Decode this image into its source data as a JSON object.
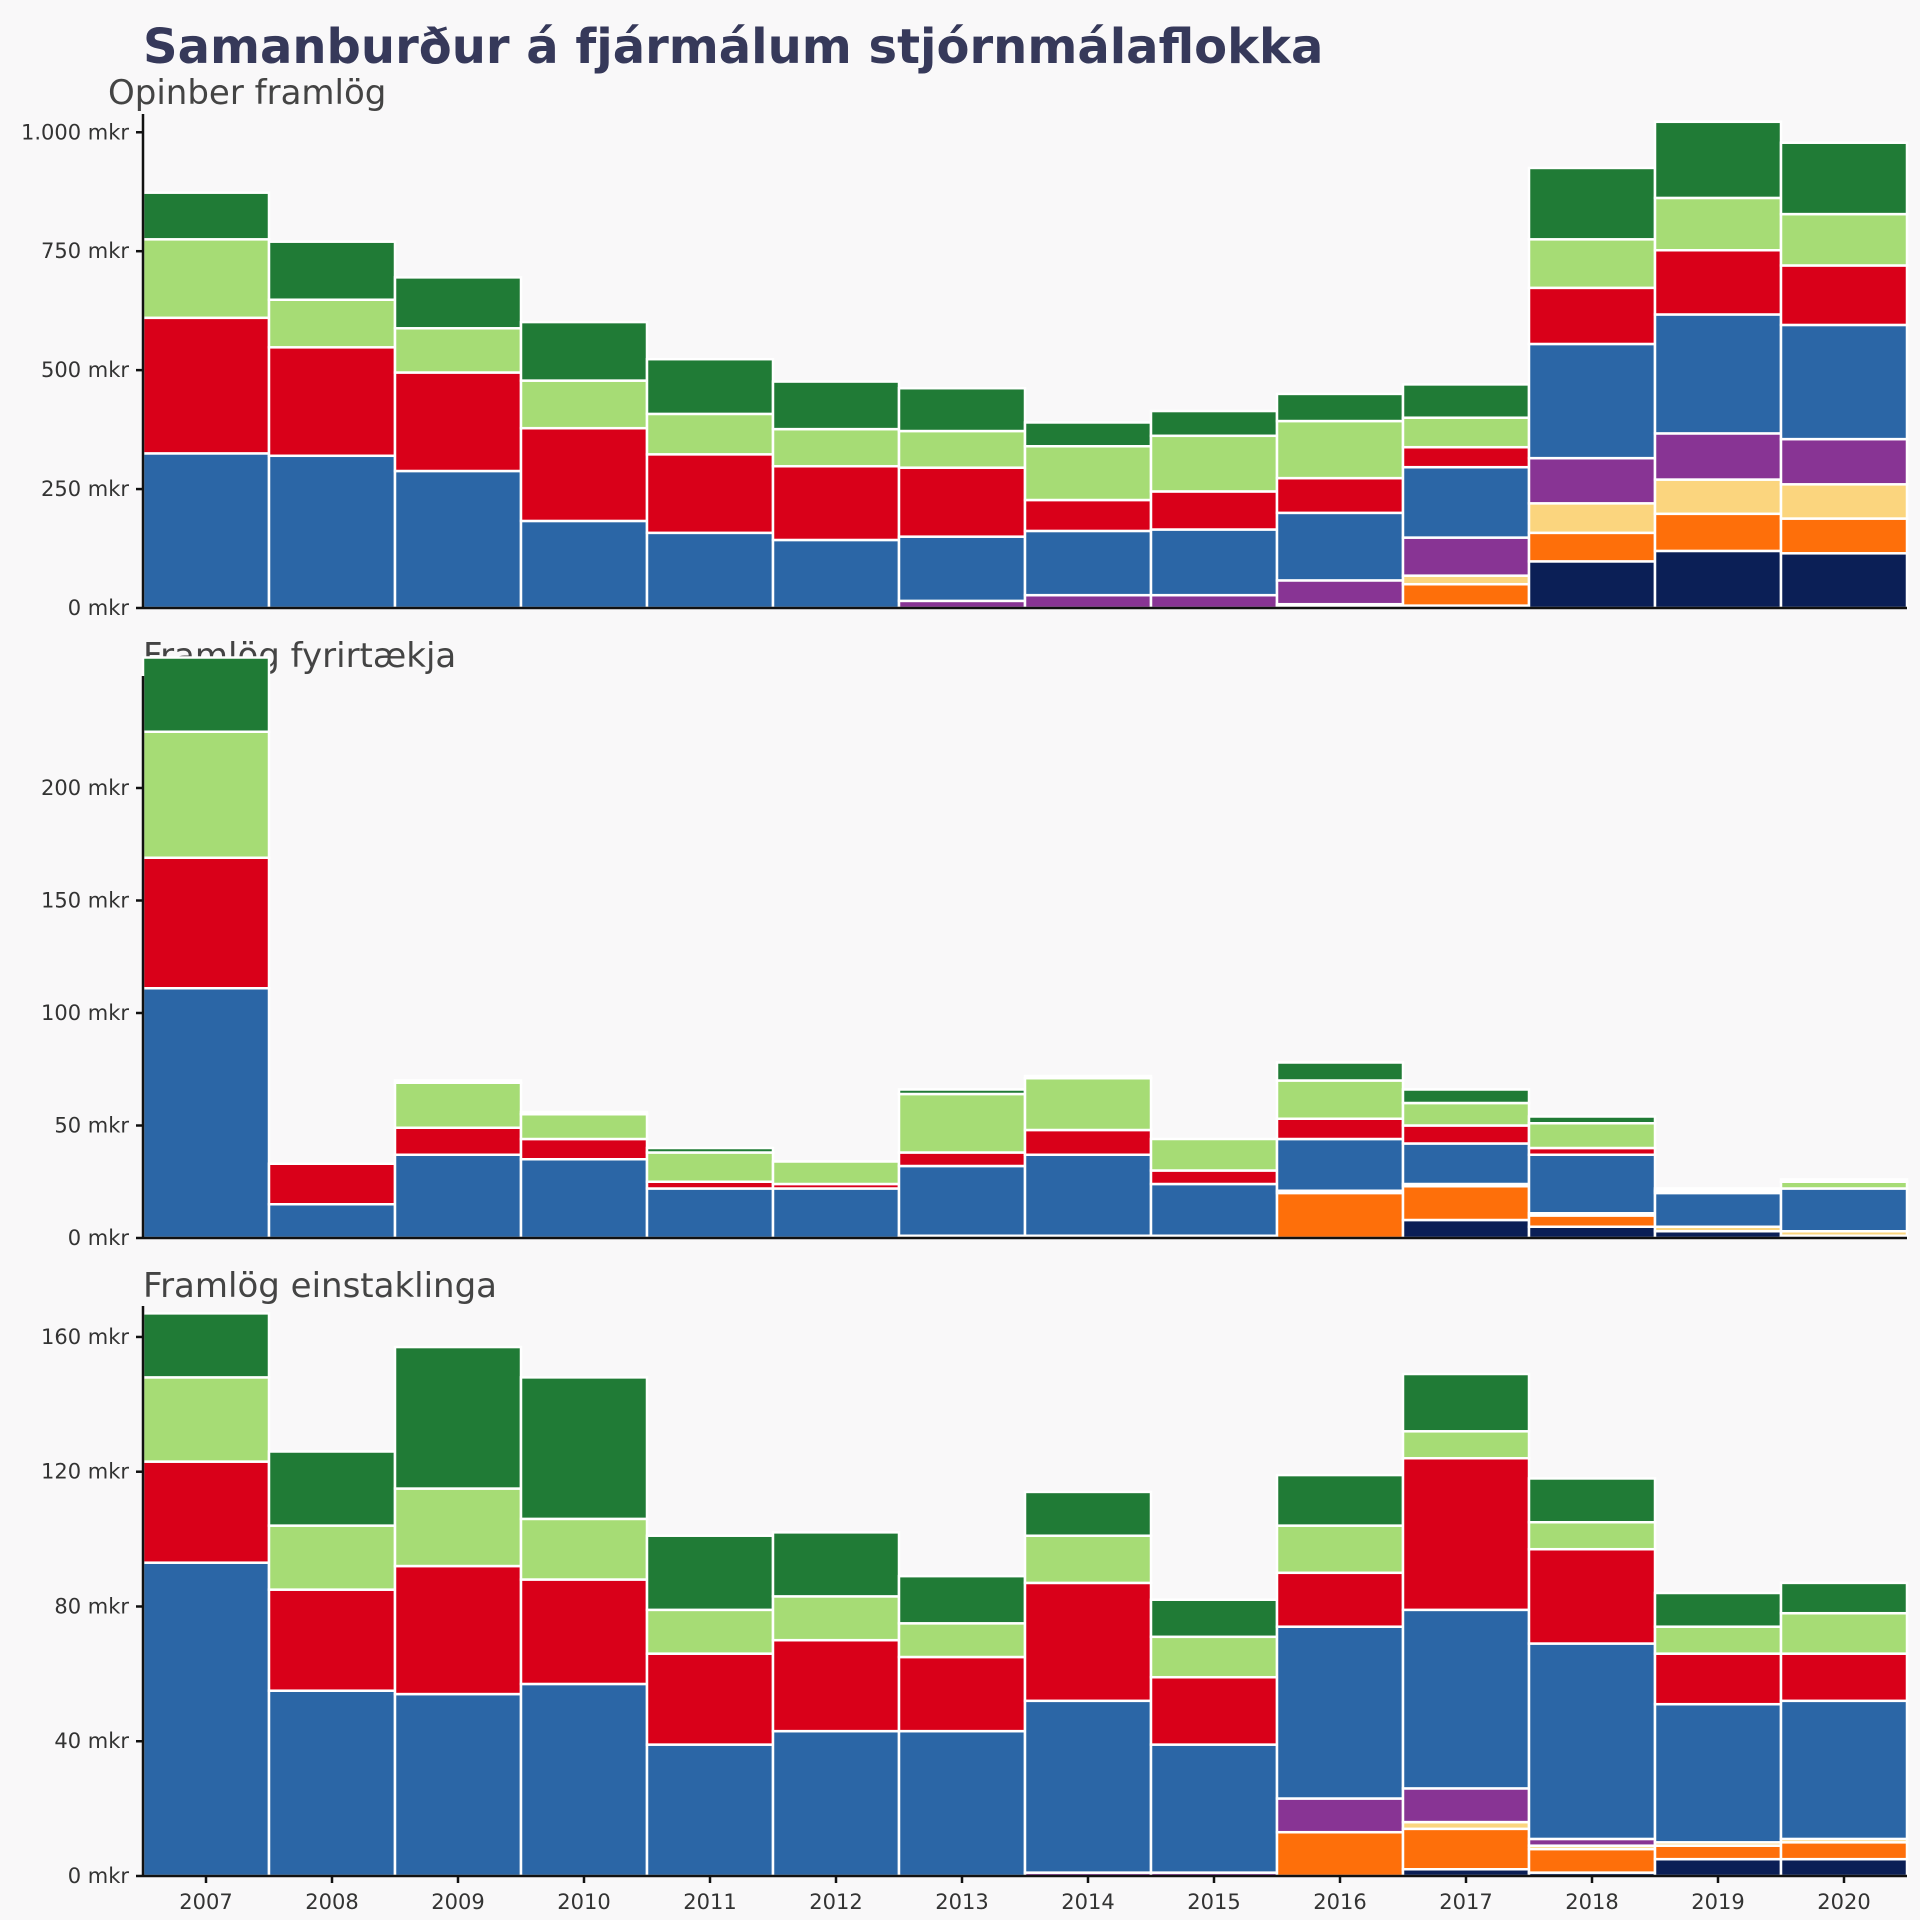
{
  "title": "Samanburður á fjármálum stjórnmálaflokka",
  "colors": {
    "s0": "#0b1f56",
    "s1": "#fe6f0a",
    "s2": "#fbd57e",
    "s3": "#883494",
    "s4": "#2b66a6",
    "s5": "#d90019",
    "s6": "#a6dc75",
    "s7": "#207b36"
  },
  "chart_data": [
    {
      "type": "bar",
      "stacked": true,
      "title": "Opinber framlög",
      "categories": [
        "2007",
        "2008",
        "2009",
        "2010",
        "2011",
        "2012",
        "2013",
        "2014",
        "2015",
        "2016",
        "2017",
        "2018",
        "2019",
        "2020"
      ],
      "yticks": [
        0,
        250,
        500,
        750,
        1000
      ],
      "ytick_labels": [
        "0 mkr",
        "250 mkr",
        "500 mkr",
        "750 mkr",
        "1.000 mkr"
      ],
      "ylim": [
        0,
        1030
      ],
      "series": [
        {
          "color_key": "s0",
          "values": [
            0,
            0,
            0,
            0,
            0,
            0,
            0,
            0,
            0,
            5,
            5,
            98,
            120,
            115
          ]
        },
        {
          "color_key": "s1",
          "values": [
            0,
            0,
            0,
            0,
            0,
            0,
            0,
            0,
            0,
            0,
            45,
            60,
            78,
            73
          ]
        },
        {
          "color_key": "s2",
          "values": [
            0,
            0,
            0,
            0,
            0,
            0,
            0,
            0,
            0,
            3,
            18,
            62,
            72,
            72
          ]
        },
        {
          "color_key": "s3",
          "values": [
            0,
            0,
            0,
            0,
            0,
            0,
            15,
            27,
            27,
            50,
            80,
            95,
            97,
            95
          ]
        },
        {
          "color_key": "s4",
          "values": [
            325,
            320,
            288,
            183,
            158,
            143,
            135,
            135,
            138,
            142,
            148,
            240,
            250,
            240
          ]
        },
        {
          "color_key": "s5",
          "values": [
            285,
            228,
            207,
            195,
            165,
            155,
            145,
            65,
            80,
            73,
            42,
            118,
            135,
            125
          ]
        },
        {
          "color_key": "s6",
          "values": [
            165,
            100,
            93,
            100,
            85,
            78,
            77,
            113,
            117,
            120,
            62,
            102,
            110,
            108
          ]
        },
        {
          "color_key": "s7",
          "values": [
            98,
            122,
            107,
            123,
            115,
            100,
            90,
            50,
            52,
            57,
            70,
            150,
            160,
            150
          ]
        }
      ]
    },
    {
      "type": "bar",
      "stacked": true,
      "title": "Framlög fyrirtækja",
      "categories": [
        "2007",
        "2008",
        "2009",
        "2010",
        "2011",
        "2012",
        "2013",
        "2014",
        "2015",
        "2016",
        "2017",
        "2018",
        "2019",
        "2020"
      ],
      "yticks": [
        0,
        50,
        100,
        150,
        200
      ],
      "ytick_labels": [
        "0 mkr",
        "50 mkr",
        "100 mkr",
        "150 mkr",
        "200 mkr"
      ],
      "ylim": [
        0,
        248
      ],
      "series": [
        {
          "color_key": "s0",
          "values": [
            0,
            0,
            0,
            0,
            0,
            0,
            0,
            0,
            0,
            0,
            8,
            5,
            3,
            1
          ]
        },
        {
          "color_key": "s1",
          "values": [
            0,
            0,
            0,
            0,
            0,
            0,
            0,
            0,
            0,
            20,
            15,
            5,
            0,
            0
          ]
        },
        {
          "color_key": "s2",
          "values": [
            0,
            0,
            0,
            0,
            0,
            0,
            0,
            0,
            0,
            1,
            1,
            1,
            2,
            2
          ]
        },
        {
          "color_key": "s3",
          "values": [
            0,
            0,
            0,
            0,
            0,
            0,
            1,
            1,
            1,
            0,
            0,
            0,
            0,
            0
          ]
        },
        {
          "color_key": "s4",
          "values": [
            111,
            15,
            37,
            35,
            22,
            22,
            31,
            36,
            23,
            23,
            18,
            26,
            15,
            19
          ]
        },
        {
          "color_key": "s5",
          "values": [
            58,
            18,
            12,
            9,
            3,
            2,
            6,
            11,
            6,
            9,
            8,
            3,
            1,
            0
          ]
        },
        {
          "color_key": "s6",
          "values": [
            56,
            0,
            20,
            11,
            13,
            10,
            26,
            23,
            14,
            17,
            10,
            11,
            1,
            3
          ]
        },
        {
          "color_key": "s7",
          "values": [
            33,
            0,
            1,
            1,
            2,
            0,
            2,
            1,
            0,
            8,
            6,
            3,
            0,
            1
          ]
        }
      ]
    },
    {
      "type": "bar",
      "stacked": true,
      "title": "Framlög einstaklinga",
      "categories": [
        "2007",
        "2008",
        "2009",
        "2010",
        "2011",
        "2012",
        "2013",
        "2014",
        "2015",
        "2016",
        "2017",
        "2018",
        "2019",
        "2020"
      ],
      "yticks": [
        0,
        40,
        80,
        120,
        160
      ],
      "ytick_labels": [
        "0 mkr",
        "40 mkr",
        "80 mkr",
        "120 mkr",
        "160 mkr"
      ],
      "ylim": [
        0,
        168
      ],
      "series": [
        {
          "color_key": "s0",
          "values": [
            0,
            0,
            0,
            0,
            0,
            0,
            0,
            0,
            0,
            0,
            2,
            1,
            5,
            5
          ]
        },
        {
          "color_key": "s1",
          "values": [
            0,
            0,
            0,
            0,
            0,
            0,
            0,
            0,
            0,
            13,
            12,
            7,
            4,
            5
          ]
        },
        {
          "color_key": "s2",
          "values": [
            0,
            0,
            0,
            0,
            0,
            0,
            0,
            0,
            0,
            0,
            2,
            1,
            1,
            1
          ]
        },
        {
          "color_key": "s3",
          "values": [
            0,
            0,
            0,
            0,
            0,
            0,
            0,
            1,
            1,
            10,
            10,
            2,
            0,
            0
          ]
        },
        {
          "color_key": "s4",
          "values": [
            93,
            55,
            54,
            57,
            39,
            43,
            43,
            51,
            38,
            51,
            53,
            58,
            41,
            41
          ]
        },
        {
          "color_key": "s5",
          "values": [
            30,
            30,
            38,
            31,
            27,
            27,
            22,
            35,
            20,
            16,
            45,
            28,
            15,
            14
          ]
        },
        {
          "color_key": "s6",
          "values": [
            25,
            19,
            23,
            18,
            13,
            13,
            10,
            14,
            12,
            14,
            8,
            8,
            8,
            12
          ]
        },
        {
          "color_key": "s7",
          "values": [
            19,
            22,
            42,
            42,
            22,
            19,
            14,
            13,
            11,
            15,
            17,
            13,
            10,
            9
          ]
        }
      ]
    }
  ]
}
